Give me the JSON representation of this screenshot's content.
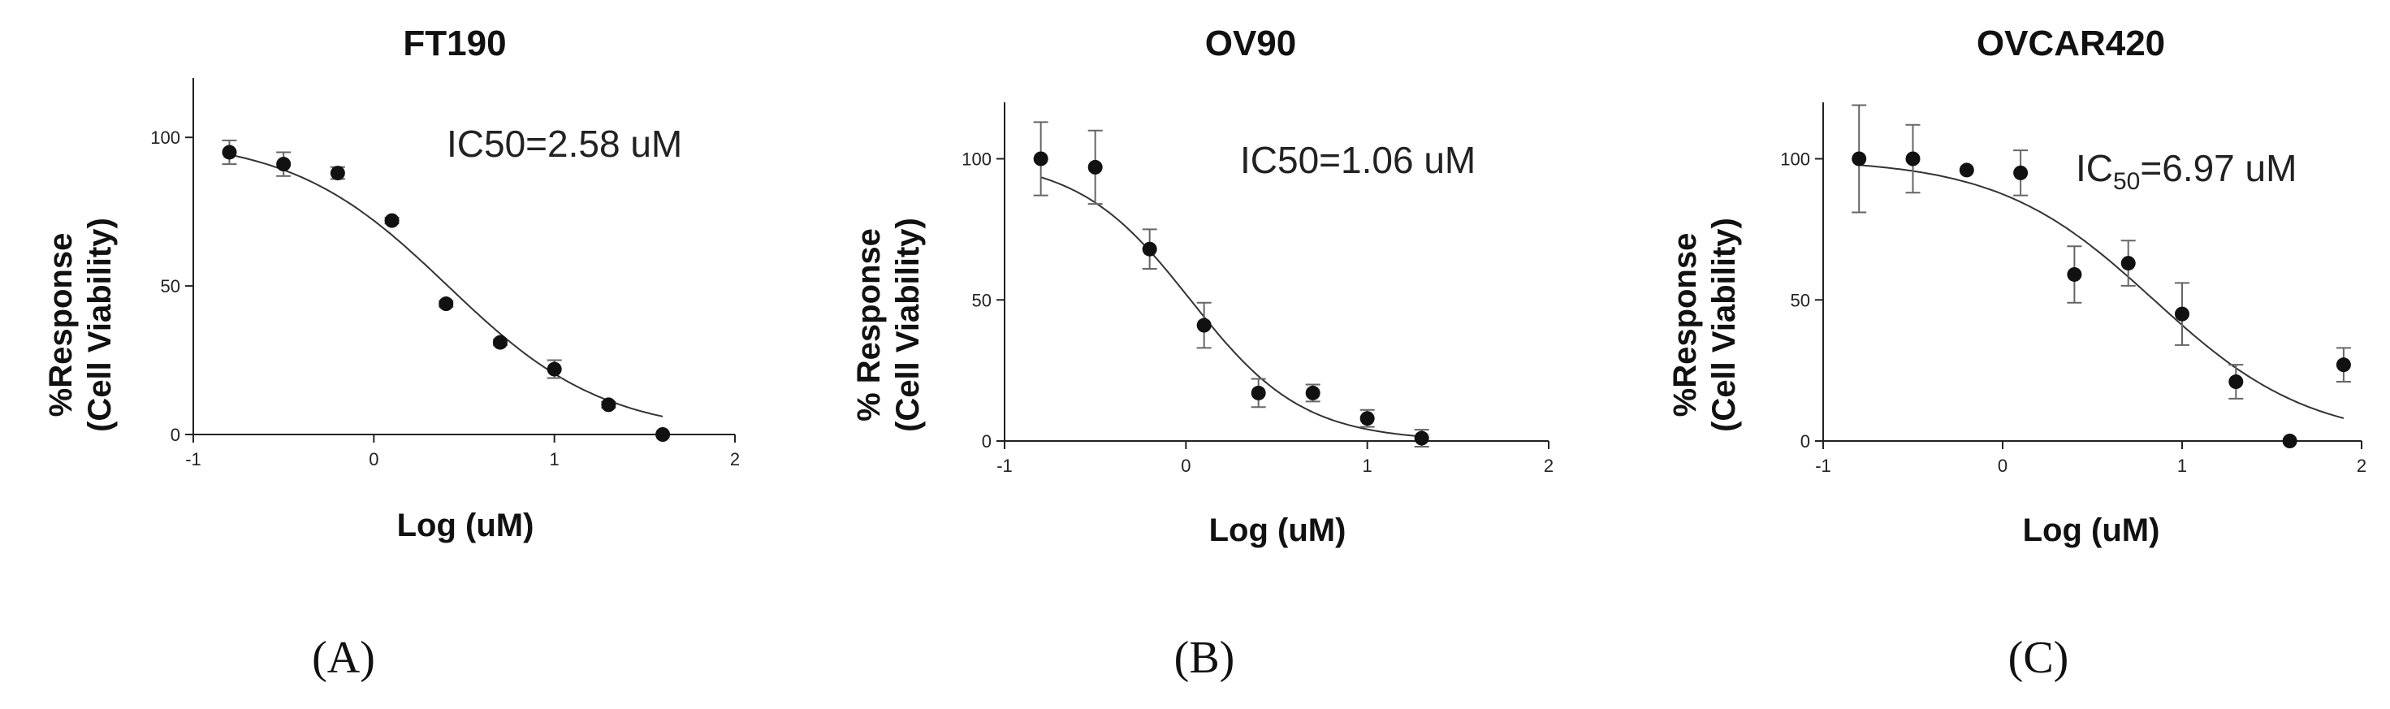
{
  "chart_data": [
    {
      "type": "scatter",
      "title": "FT190",
      "xlabel": "Log (uM)",
      "ylabel_line1": "%Response",
      "ylabel_line2": "(Cell Viability)",
      "annotation": "IC50=2.58 uM",
      "annotation_parts": null,
      "panel_label": "(A)",
      "xlim": [
        -1,
        2
      ],
      "ylim": [
        0,
        120
      ],
      "xticks": [
        -1,
        0,
        1,
        2
      ],
      "xtick_labels": [
        "-1",
        "0",
        "1",
        "2"
      ],
      "yticks": [
        0,
        50,
        100
      ],
      "ytick_labels": [
        "0",
        "50",
        "100"
      ],
      "grid": false,
      "fit_curve": {
        "model": "four-parameter logistic",
        "top": 100,
        "bottom": 0,
        "log_ic50": 0.41,
        "hill": 1.0,
        "x_range": [
          -0.8,
          1.6
        ]
      },
      "series": [
        {
          "x": [
            -0.8,
            -0.5,
            -0.2,
            0.1,
            0.4,
            0.7,
            1.0,
            1.3,
            1.6
          ],
          "y": [
            95,
            91,
            88,
            72,
            44,
            31,
            22,
            10,
            0
          ],
          "error": [
            4,
            4,
            2,
            1,
            1,
            1,
            3,
            1,
            0
          ]
        }
      ]
    },
    {
      "type": "scatter",
      "title": "OV90",
      "xlabel": "Log (uM)",
      "ylabel_line1": "% Response",
      "ylabel_line2": "(Cell Viability)",
      "annotation": "IC50=1.06 uM",
      "annotation_parts": null,
      "panel_label": "(B)",
      "xlim": [
        -1,
        2
      ],
      "ylim": [
        0,
        120
      ],
      "xticks": [
        -1,
        0,
        1,
        2
      ],
      "xtick_labels": [
        "-1",
        "0",
        "1",
        "2"
      ],
      "yticks": [
        0,
        50,
        100
      ],
      "ytick_labels": [
        "0",
        "50",
        "100"
      ],
      "grid": false,
      "fit_curve": {
        "model": "four-parameter logistic",
        "top": 100,
        "bottom": 0,
        "log_ic50": 0.025,
        "hill": 1.4,
        "x_range": [
          -0.8,
          1.3
        ]
      },
      "series": [
        {
          "x": [
            -0.8,
            -0.5,
            -0.2,
            0.1,
            0.4,
            0.7,
            1.0,
            1.3
          ],
          "y": [
            100,
            97,
            68,
            41,
            17,
            17,
            8,
            1
          ],
          "error": [
            13,
            13,
            7,
            8,
            5,
            3,
            3,
            3
          ]
        }
      ]
    },
    {
      "type": "scatter",
      "title": "OVCAR420",
      "xlabel": "Log (uM)",
      "ylabel_line1": "%Response",
      "ylabel_line2": "(Cell Viability)",
      "annotation": null,
      "annotation_parts": [
        "IC",
        "50",
        "=6.97 uM"
      ],
      "panel_label": "(C)",
      "xlim": [
        -1,
        2
      ],
      "ylim": [
        0,
        120
      ],
      "xticks": [
        -1,
        0,
        1,
        2
      ],
      "xtick_labels": [
        "-1",
        "0",
        "1",
        "2"
      ],
      "yticks": [
        0,
        50,
        100
      ],
      "ytick_labels": [
        "0",
        "50",
        "100"
      ],
      "grid": false,
      "fit_curve": {
        "model": "four-parameter logistic",
        "top": 100,
        "bottom": 0,
        "log_ic50": 0.843,
        "hill": 1.0,
        "x_range": [
          -0.8,
          1.9
        ]
      },
      "series": [
        {
          "x": [
            -0.8,
            -0.5,
            -0.2,
            0.1,
            0.4,
            0.7,
            1.0,
            1.3,
            1.6,
            1.9
          ],
          "y": [
            100,
            100,
            96,
            95,
            59,
            63,
            45,
            21,
            0,
            27
          ],
          "error": [
            19,
            12,
            0,
            8,
            10,
            8,
            11,
            6,
            0,
            6
          ]
        }
      ]
    }
  ]
}
